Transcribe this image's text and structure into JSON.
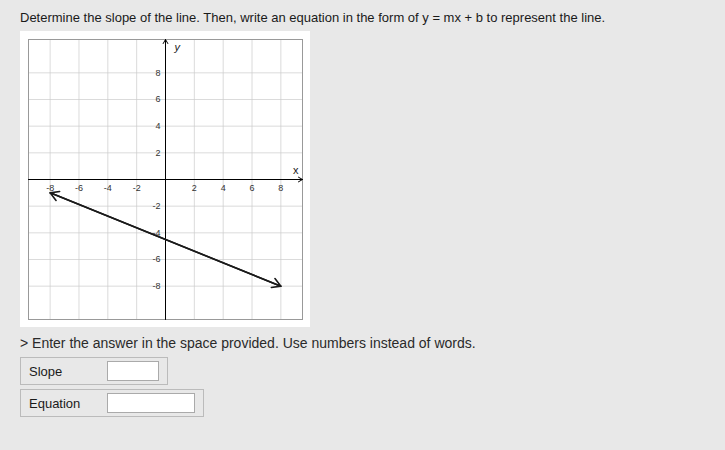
{
  "chart_data": {
    "type": "line",
    "title": "Determine the slope of the line. Then, write an equation in the form of y = mx + b to represent the line.",
    "xlabel": "x",
    "ylabel": "y",
    "x": [
      -8,
      8
    ],
    "values": [
      -1,
      -8
    ],
    "color": "#1a1a1a",
    "xlim": [
      -9.5,
      9.5
    ],
    "ylim": [
      -10.5,
      10.5
    ],
    "xticks": [
      -8,
      -6,
      -4,
      -2,
      2,
      4,
      6,
      8
    ],
    "yticks": [
      -8,
      -6,
      -4,
      -2,
      2,
      4,
      6,
      8
    ],
    "grid": true,
    "annotations": [
      "> Enter the answer in the space provided. Use numbers instead of words.",
      "Slope",
      "Equation"
    ]
  }
}
